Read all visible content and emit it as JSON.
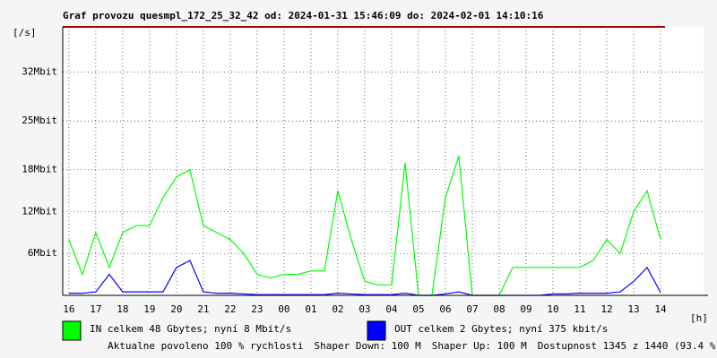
{
  "chart_data": {
    "type": "line",
    "title": "Graf provozu quesmpl_172_25_32_42 od: 2024-01-31 15:46:09 do: 2024-02-01 14:10:16",
    "y_label": "[/s]",
    "x_label": "[h]",
    "x": [
      16,
      16.5,
      17,
      17.5,
      18,
      18.5,
      19,
      19.5,
      20,
      20.5,
      21,
      21.5,
      22,
      22.5,
      23,
      23.5,
      24,
      24.5,
      25,
      25.5,
      26,
      26.5,
      27,
      27.5,
      28,
      28.5,
      29,
      29.5,
      30,
      30.5,
      31,
      31.5,
      32,
      32.5,
      33,
      33.5,
      34,
      34.5,
      35,
      35.5,
      36,
      36.5,
      37,
      37.5,
      38
    ],
    "series": [
      {
        "name": "IN celkem 48 Gbytes; nyní 8 Mbit/s",
        "color": "#00ff00",
        "values": [
          8,
          3,
          9,
          4,
          9,
          10,
          10,
          14,
          17,
          18,
          10,
          9,
          8,
          6,
          3,
          2.5,
          3,
          3,
          3.5,
          3.5,
          15,
          8,
          2,
          1.5,
          1.5,
          19,
          0,
          0,
          14,
          20,
          0,
          0,
          0,
          4,
          4,
          4,
          4,
          4,
          4,
          5,
          8,
          6,
          12,
          15,
          8
        ]
      },
      {
        "name": "OUT celkem 2 Gbytes; nyní 375 kbit/s",
        "color": "#0000ff",
        "values": [
          0.3,
          0.3,
          0.5,
          3,
          0.5,
          0.5,
          0.5,
          0.5,
          4,
          5,
          0.5,
          0.3,
          0.3,
          0.2,
          0.1,
          0.1,
          0.1,
          0.1,
          0.1,
          0.1,
          0.3,
          0.2,
          0.1,
          0.1,
          0.1,
          0.3,
          0,
          0,
          0.2,
          0.5,
          0,
          0,
          0,
          0,
          0,
          0,
          0.2,
          0.2,
          0.3,
          0.3,
          0.3,
          0.5,
          2,
          4,
          0.4
        ]
      }
    ],
    "xlim": [
      15.77,
      39.6
    ],
    "ylim": [
      0,
      38.5
    ],
    "xticks": [
      16,
      17,
      18,
      19,
      20,
      21,
      22,
      23,
      {
        "value": 24,
        "label": "00"
      },
      {
        "value": 25,
        "label": "01"
      },
      {
        "value": 26,
        "label": "02"
      },
      {
        "value": 27,
        "label": "03"
      },
      {
        "value": 28,
        "label": "04"
      },
      {
        "value": 29,
        "label": "05"
      },
      {
        "value": 30,
        "label": "06"
      },
      {
        "value": 31,
        "label": "07"
      },
      {
        "value": 32,
        "label": "08"
      },
      {
        "value": 33,
        "label": "09"
      },
      {
        "value": 34,
        "label": "10"
      },
      {
        "value": 35,
        "label": "11"
      },
      {
        "value": 36,
        "label": "12"
      },
      {
        "value": 37,
        "label": "13"
      },
      {
        "value": 38,
        "label": "14"
      }
    ],
    "yticks": [
      {
        "value": 6,
        "label": "6Mbit"
      },
      {
        "value": 12,
        "label": "12Mbit"
      },
      {
        "value": 18,
        "label": "18Mbit"
      },
      {
        "value": 25,
        "label": "25Mbit"
      },
      {
        "value": 32,
        "label": "32Mbit"
      }
    ],
    "grid": true,
    "footer": [
      {
        "text": "Aktualne povoleno 100 % rychlosti",
        "color": "#ff0000"
      },
      {
        "text": "Shaper Down: 100 M",
        "color": "#000000"
      },
      {
        "text": "Shaper Up: 100 M",
        "color": "#8000a0"
      },
      {
        "text": "Dostupnost 1345 z 1440 (93.4 %)",
        "color": "#000000"
      }
    ]
  }
}
